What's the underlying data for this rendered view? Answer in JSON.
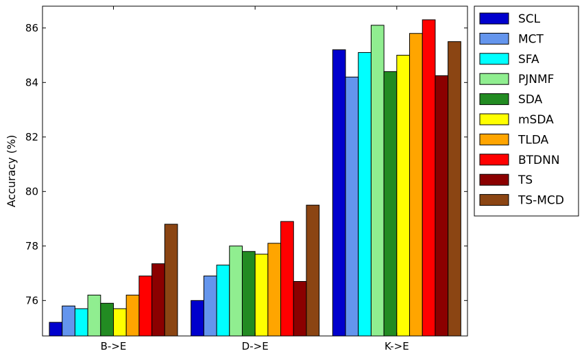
{
  "chart_data": {
    "type": "bar",
    "title": "",
    "xlabel": "",
    "ylabel": "Accuracy (%)",
    "ylim": [
      74.7,
      86.8
    ],
    "yticks": [
      76,
      78,
      80,
      82,
      84,
      86
    ],
    "categories": [
      "B->E",
      "D->E",
      "K->E"
    ],
    "grid": false,
    "legend_position": "outside-right",
    "series": [
      {
        "name": "SCL",
        "color": "#0000cd",
        "values": [
          75.2,
          76.0,
          85.2
        ]
      },
      {
        "name": "MCT",
        "color": "#6495ed",
        "values": [
          75.8,
          76.9,
          84.2
        ]
      },
      {
        "name": "SFA",
        "color": "#00ffff",
        "values": [
          75.7,
          77.3,
          85.1
        ]
      },
      {
        "name": "PJNMF",
        "color": "#90ee90",
        "values": [
          76.2,
          78.0,
          86.1
        ]
      },
      {
        "name": "SDA",
        "color": "#228b22",
        "values": [
          75.9,
          77.8,
          84.4
        ]
      },
      {
        "name": "mSDA",
        "color": "#ffff00",
        "values": [
          75.7,
          77.7,
          85.0
        ]
      },
      {
        "name": "TLDA",
        "color": "#ffa500",
        "values": [
          76.2,
          78.1,
          85.8
        ]
      },
      {
        "name": "BTDNN",
        "color": "#ff0000",
        "values": [
          76.9,
          78.9,
          86.3
        ]
      },
      {
        "name": "TS",
        "color": "#8b0000",
        "values": [
          77.35,
          76.7,
          84.25
        ]
      },
      {
        "name": "TS-MCD",
        "color": "#8b4513",
        "values": [
          78.8,
          79.5,
          85.5
        ]
      }
    ]
  }
}
